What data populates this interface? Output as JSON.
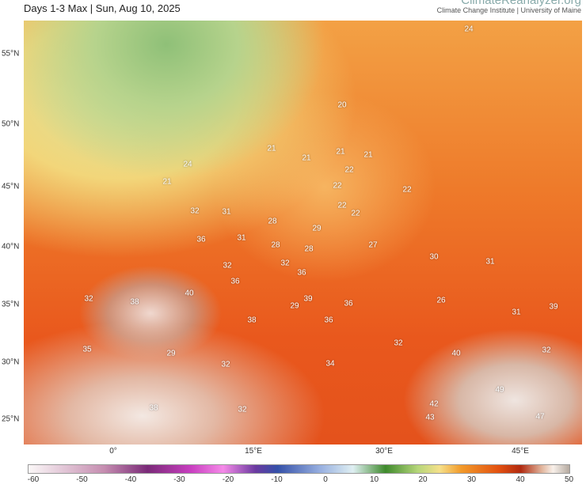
{
  "header": {
    "title": "Days 1-3 Max | Sun, Aug 10, 2025",
    "brand": "ClimateReanalyzer.org",
    "institution": "Climate Change Institute | University of Maine"
  },
  "latitudes": [
    "55°N",
    "50°N",
    "45°N",
    "40°N",
    "35°N",
    "30°N",
    "25°N"
  ],
  "longitudes": [
    "0°",
    "15°E",
    "30°E",
    "45°E"
  ],
  "colorbar": {
    "ticks": [
      "-60",
      "-50",
      "-40",
      "-30",
      "-20",
      "-10",
      "0",
      "10",
      "20",
      "30",
      "40",
      "50"
    ],
    "colors": [
      "#fbf8f8",
      "#7a2a78",
      "#f58ae8",
      "#3450a8",
      "#dfeff2",
      "#3e8a2c",
      "#f5e08a",
      "#f29a2a",
      "#e25010",
      "#b02a10",
      "#f8f0ea"
    ]
  },
  "map_labels": [
    "24",
    "20",
    "21",
    "21",
    "21",
    "21",
    "24",
    "21",
    "22",
    "22",
    "22",
    "22",
    "22",
    "31",
    "32",
    "28",
    "29",
    "36",
    "31",
    "28",
    "28",
    "27",
    "30",
    "31",
    "32",
    "32",
    "36",
    "36",
    "40",
    "32",
    "38",
    "29",
    "39",
    "36",
    "26",
    "39",
    "31",
    "38",
    "36",
    "35",
    "29",
    "32",
    "34",
    "32",
    "40",
    "32",
    "49",
    "38",
    "32",
    "42",
    "43",
    "47"
  ]
}
